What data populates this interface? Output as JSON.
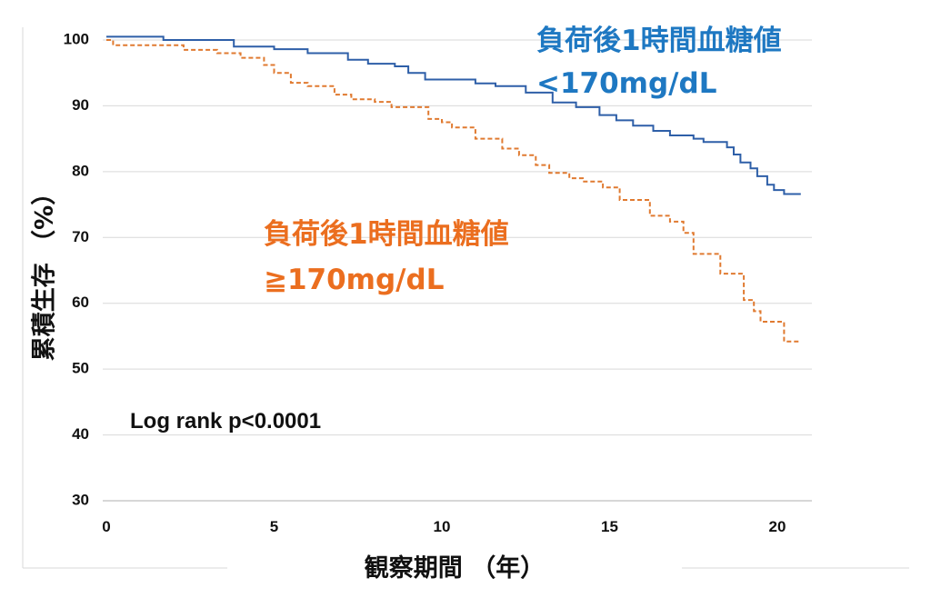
{
  "chart_data": {
    "type": "line",
    "title": "",
    "xlabel": "観察期間 （年）",
    "ylabel": "累積生存 （%）",
    "xlim": [
      0,
      21
    ],
    "ylim": [
      30,
      100
    ],
    "x_ticks": [
      {
        "value": 0,
        "label": "0"
      },
      {
        "value": 5,
        "label": "5"
      },
      {
        "value": 10,
        "label": "10"
      },
      {
        "value": 15,
        "label": "15"
      },
      {
        "value": 20,
        "label": "20"
      }
    ],
    "y_ticks": [
      {
        "value": 100,
        "label": "100"
      },
      {
        "value": 90,
        "label": "90"
      },
      {
        "value": 80,
        "label": "80"
      },
      {
        "value": 70,
        "label": "70"
      },
      {
        "value": 60,
        "label": "60"
      },
      {
        "value": 50,
        "label": "50"
      },
      {
        "value": 40,
        "label": "40"
      },
      {
        "value": 30,
        "label": "30"
      }
    ],
    "grid": "horizontal",
    "annotation": "Log rank p<0.0001",
    "series": [
      {
        "label_lines": [
          "負荷後1時間血糖値",
          "<170mg/dL"
        ],
        "color": "#2E5FA8",
        "label_color": "#1E78C2",
        "dash": "solid",
        "step": true,
        "points": [
          [
            0,
            100.5
          ],
          [
            1,
            100.5
          ],
          [
            1.7,
            100
          ],
          [
            3.6,
            100
          ],
          [
            3.8,
            99
          ],
          [
            5,
            98.6
          ],
          [
            6,
            98
          ],
          [
            7.2,
            97
          ],
          [
            7.8,
            96.4
          ],
          [
            8.6,
            96
          ],
          [
            9,
            95
          ],
          [
            9.5,
            94
          ],
          [
            11,
            93.4
          ],
          [
            11.6,
            93
          ],
          [
            12.5,
            92
          ],
          [
            13.3,
            90.5
          ],
          [
            14,
            89.8
          ],
          [
            14.7,
            88.6
          ],
          [
            15.2,
            87.8
          ],
          [
            15.7,
            87
          ],
          [
            16.3,
            86.2
          ],
          [
            16.8,
            85.5
          ],
          [
            17.5,
            85
          ],
          [
            17.8,
            84.5
          ],
          [
            18.5,
            83.7
          ],
          [
            18.7,
            82.6
          ],
          [
            18.9,
            81.4
          ],
          [
            19.2,
            80.5
          ],
          [
            19.4,
            79.3
          ],
          [
            19.7,
            78
          ],
          [
            19.9,
            77.2
          ],
          [
            20.2,
            76.6
          ],
          [
            20.7,
            76.6
          ]
        ]
      },
      {
        "label_lines": [
          "負荷後1時間血糖値",
          "≧170mg/dL"
        ],
        "color": "#E07A30",
        "label_color": "#EB6E1F",
        "dash": "dashed",
        "step": true,
        "points": [
          [
            0,
            100
          ],
          [
            0.2,
            99.2
          ],
          [
            2,
            99.2
          ],
          [
            2.3,
            98.5
          ],
          [
            3.3,
            98
          ],
          [
            4,
            97.3
          ],
          [
            4.7,
            96.2
          ],
          [
            5,
            95
          ],
          [
            5.5,
            93.5
          ],
          [
            6,
            93
          ],
          [
            6.8,
            91.7
          ],
          [
            7.3,
            91
          ],
          [
            8,
            90.6
          ],
          [
            8.5,
            89.8
          ],
          [
            9.3,
            89.8
          ],
          [
            9.6,
            88
          ],
          [
            10,
            87.5
          ],
          [
            10.3,
            86.7
          ],
          [
            11,
            85
          ],
          [
            11.8,
            83.5
          ],
          [
            12.3,
            82.5
          ],
          [
            12.8,
            81
          ],
          [
            13.2,
            79.8
          ],
          [
            13.8,
            79
          ],
          [
            14.2,
            78.5
          ],
          [
            14.8,
            77.6
          ],
          [
            15.3,
            75.7
          ],
          [
            15.9,
            75.7
          ],
          [
            16.2,
            73.3
          ],
          [
            16.5,
            73.3
          ],
          [
            16.8,
            72.4
          ],
          [
            17.2,
            70.7
          ],
          [
            17.5,
            67.5
          ],
          [
            18,
            67.5
          ],
          [
            18.3,
            64.5
          ],
          [
            18.9,
            64.5
          ],
          [
            19,
            60.5
          ],
          [
            19.3,
            58.8
          ],
          [
            19.5,
            57.2
          ],
          [
            20.1,
            57.2
          ],
          [
            20.2,
            54.2
          ],
          [
            20.7,
            54.2
          ]
        ]
      }
    ]
  }
}
